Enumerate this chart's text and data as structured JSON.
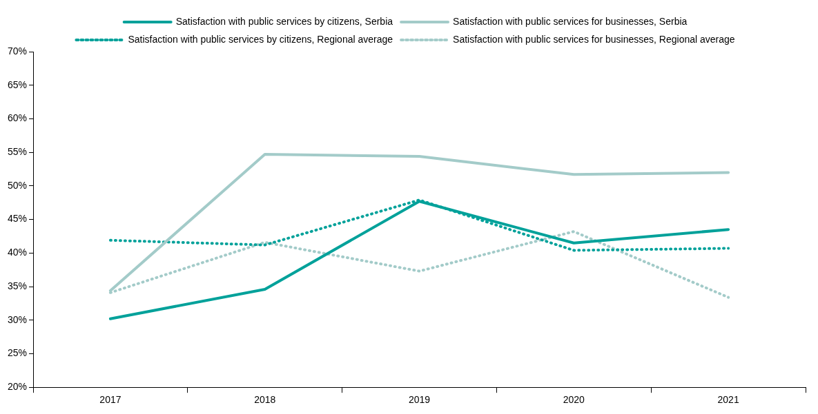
{
  "chart_data": {
    "type": "line",
    "categories": [
      "2017",
      "2018",
      "2019",
      "2020",
      "2021"
    ],
    "series": [
      {
        "name": "Satisfaction with public services by citizens, Serbia",
        "color": "#00a19a",
        "line_style": "solid",
        "values": [
          30.2,
          34.6,
          47.7,
          41.5,
          43.5
        ]
      },
      {
        "name": "Satisfaction with public services for businesses, Serbia",
        "color": "#a3cbc9",
        "line_style": "solid",
        "values": [
          34.4,
          54.7,
          54.4,
          51.7,
          52.0
        ]
      },
      {
        "name": "Satisfaction with public services by citizens, Regional average",
        "color": "#00a19a",
        "line_style": "dotted",
        "values": [
          41.9,
          41.2,
          47.9,
          40.4,
          40.7
        ]
      },
      {
        "name": "Satisfaction with public services for businesses, Regional average",
        "color": "#a3cbc9",
        "line_style": "dotted",
        "values": [
          34.1,
          41.6,
          37.3,
          43.2,
          33.4
        ]
      }
    ],
    "ylim": [
      20,
      70
    ],
    "yticks": [
      {
        "value": 20,
        "label": "20%"
      },
      {
        "value": 25,
        "label": "25%"
      },
      {
        "value": 30,
        "label": "30%"
      },
      {
        "value": 35,
        "label": "35%"
      },
      {
        "value": 40,
        "label": "40%"
      },
      {
        "value": 45,
        "label": "45%"
      },
      {
        "value": 50,
        "label": "50%"
      },
      {
        "value": 55,
        "label": "55%"
      },
      {
        "value": 60,
        "label": "60%"
      },
      {
        "value": 65,
        "label": "65%"
      },
      {
        "value": 70,
        "label": "70%"
      }
    ],
    "grid": false,
    "legend": "top",
    "marker": "none"
  }
}
